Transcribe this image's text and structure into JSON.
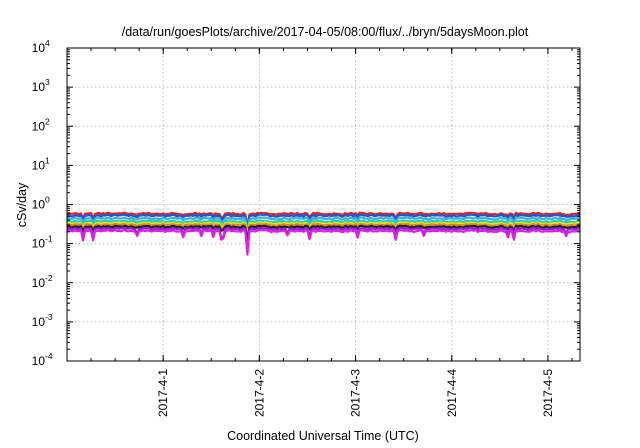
{
  "chart_data": {
    "type": "line",
    "title": "/data/run/goesPlots/archive/2017-04-05/08:00/flux/../bryn/5daysMoon.plot",
    "xlabel": "Coordinated Universal Time (UTC)",
    "ylabel": "cSv/day",
    "y_scale": "log",
    "ylim": [
      0.0001,
      10000
    ],
    "xlim": [
      "2017-03-31T00:00",
      "2017-04-05T08:00"
    ],
    "y_ticks": [
      {
        "base": "10",
        "exp": "-4"
      },
      {
        "base": "10",
        "exp": "-3"
      },
      {
        "base": "10",
        "exp": "-2"
      },
      {
        "base": "10",
        "exp": "-1"
      },
      {
        "base": "10",
        "exp": "0"
      },
      {
        "base": "10",
        "exp": "1"
      },
      {
        "base": "10",
        "exp": "2"
      },
      {
        "base": "10",
        "exp": "3"
      },
      {
        "base": "10",
        "exp": "4"
      }
    ],
    "x_ticks": [
      {
        "label": "2017-4-1",
        "t": "2017-04-01T00:00"
      },
      {
        "label": "2017-4-2",
        "t": "2017-04-02T00:00"
      },
      {
        "label": "2017-4-3",
        "t": "2017-04-03T00:00"
      },
      {
        "label": "2017-4-4",
        "t": "2017-04-04T00:00"
      },
      {
        "label": "2017-4-5",
        "t": "2017-04-05T00:00"
      }
    ],
    "grid": true,
    "series": [
      {
        "color": "#e8201c",
        "level": 0.58
      },
      {
        "color": "#1f56d6",
        "level": 0.52
      },
      {
        "color": "#3ab0e8",
        "level": 0.44
      },
      {
        "color": "#1fd0b0",
        "level": 0.37
      },
      {
        "color": "#e0e020",
        "level": 0.33
      },
      {
        "color": "#d88820",
        "level": 0.3
      },
      {
        "color": "#202020",
        "level": 0.27
      },
      {
        "color": "#9020e0",
        "level": 0.24
      },
      {
        "color": "#e020e0",
        "level": 0.21
      }
    ],
    "dips": [
      {
        "t": "2017-03-31T04:00",
        "f": 0.55
      },
      {
        "t": "2017-03-31T06:30",
        "f": 0.6
      },
      {
        "t": "2017-03-31T17:30",
        "f": 0.75
      },
      {
        "t": "2017-04-01T05:00",
        "f": 0.7
      },
      {
        "t": "2017-04-01T09:30",
        "f": 0.72
      },
      {
        "t": "2017-04-01T12:30",
        "f": 0.7
      },
      {
        "t": "2017-04-01T14:30",
        "f": 0.6
      },
      {
        "t": "2017-04-01T15:00",
        "f": 0.65
      },
      {
        "t": "2017-04-01T21:00",
        "f": 0.25
      },
      {
        "t": "2017-04-02T07:00",
        "f": 0.75
      },
      {
        "t": "2017-04-02T12:30",
        "f": 0.6
      },
      {
        "t": "2017-04-03T00:30",
        "f": 0.65
      },
      {
        "t": "2017-04-03T10:00",
        "f": 0.6
      },
      {
        "t": "2017-04-03T17:00",
        "f": 0.75
      },
      {
        "t": "2017-04-04T14:00",
        "f": 0.7
      },
      {
        "t": "2017-04-04T15:30",
        "f": 0.6
      },
      {
        "t": "2017-04-05T04:30",
        "f": 0.75
      }
    ]
  }
}
